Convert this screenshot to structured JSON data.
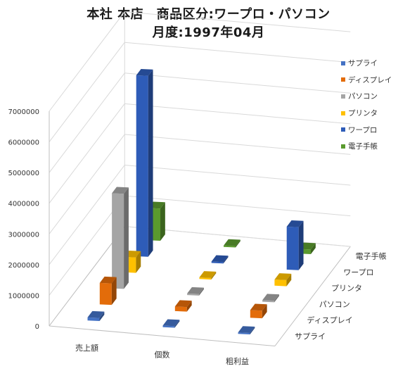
{
  "title": {
    "line1": "本社 本店　商品区分:ワープロ・パソコン",
    "line2": "月度:1997年04月"
  },
  "chart_data": {
    "type": "bar",
    "subtype": "3d-column",
    "categories": [
      "売上額",
      "個数",
      "粗利益"
    ],
    "series": [
      {
        "name": "サプライ",
        "color": "#4472c4",
        "values": [
          100000,
          50000,
          40000
        ]
      },
      {
        "name": "ディスプレイ",
        "color": "#e36c0a",
        "values": [
          700000,
          150000,
          250000
        ]
      },
      {
        "name": "パソコン",
        "color": "#a5a5a5",
        "values": [
          3100000,
          50000,
          50000
        ]
      },
      {
        "name": "プリンタ",
        "color": "#ffc000",
        "values": [
          500000,
          50000,
          200000
        ]
      },
      {
        "name": "ワープロ",
        "color": "#2e5cb8",
        "values": [
          5900000,
          40000,
          1400000
        ]
      },
      {
        "name": "電子手帳",
        "color": "#5a9a2e",
        "values": [
          1050000,
          30000,
          150000
        ]
      }
    ],
    "yaxis_ticks": [
      "0",
      "1000000",
      "2000000",
      "3000000",
      "4000000",
      "5000000",
      "6000000",
      "7000000"
    ],
    "ylim": [
      0,
      7000000
    ],
    "grid": true,
    "legend_position": "right"
  }
}
